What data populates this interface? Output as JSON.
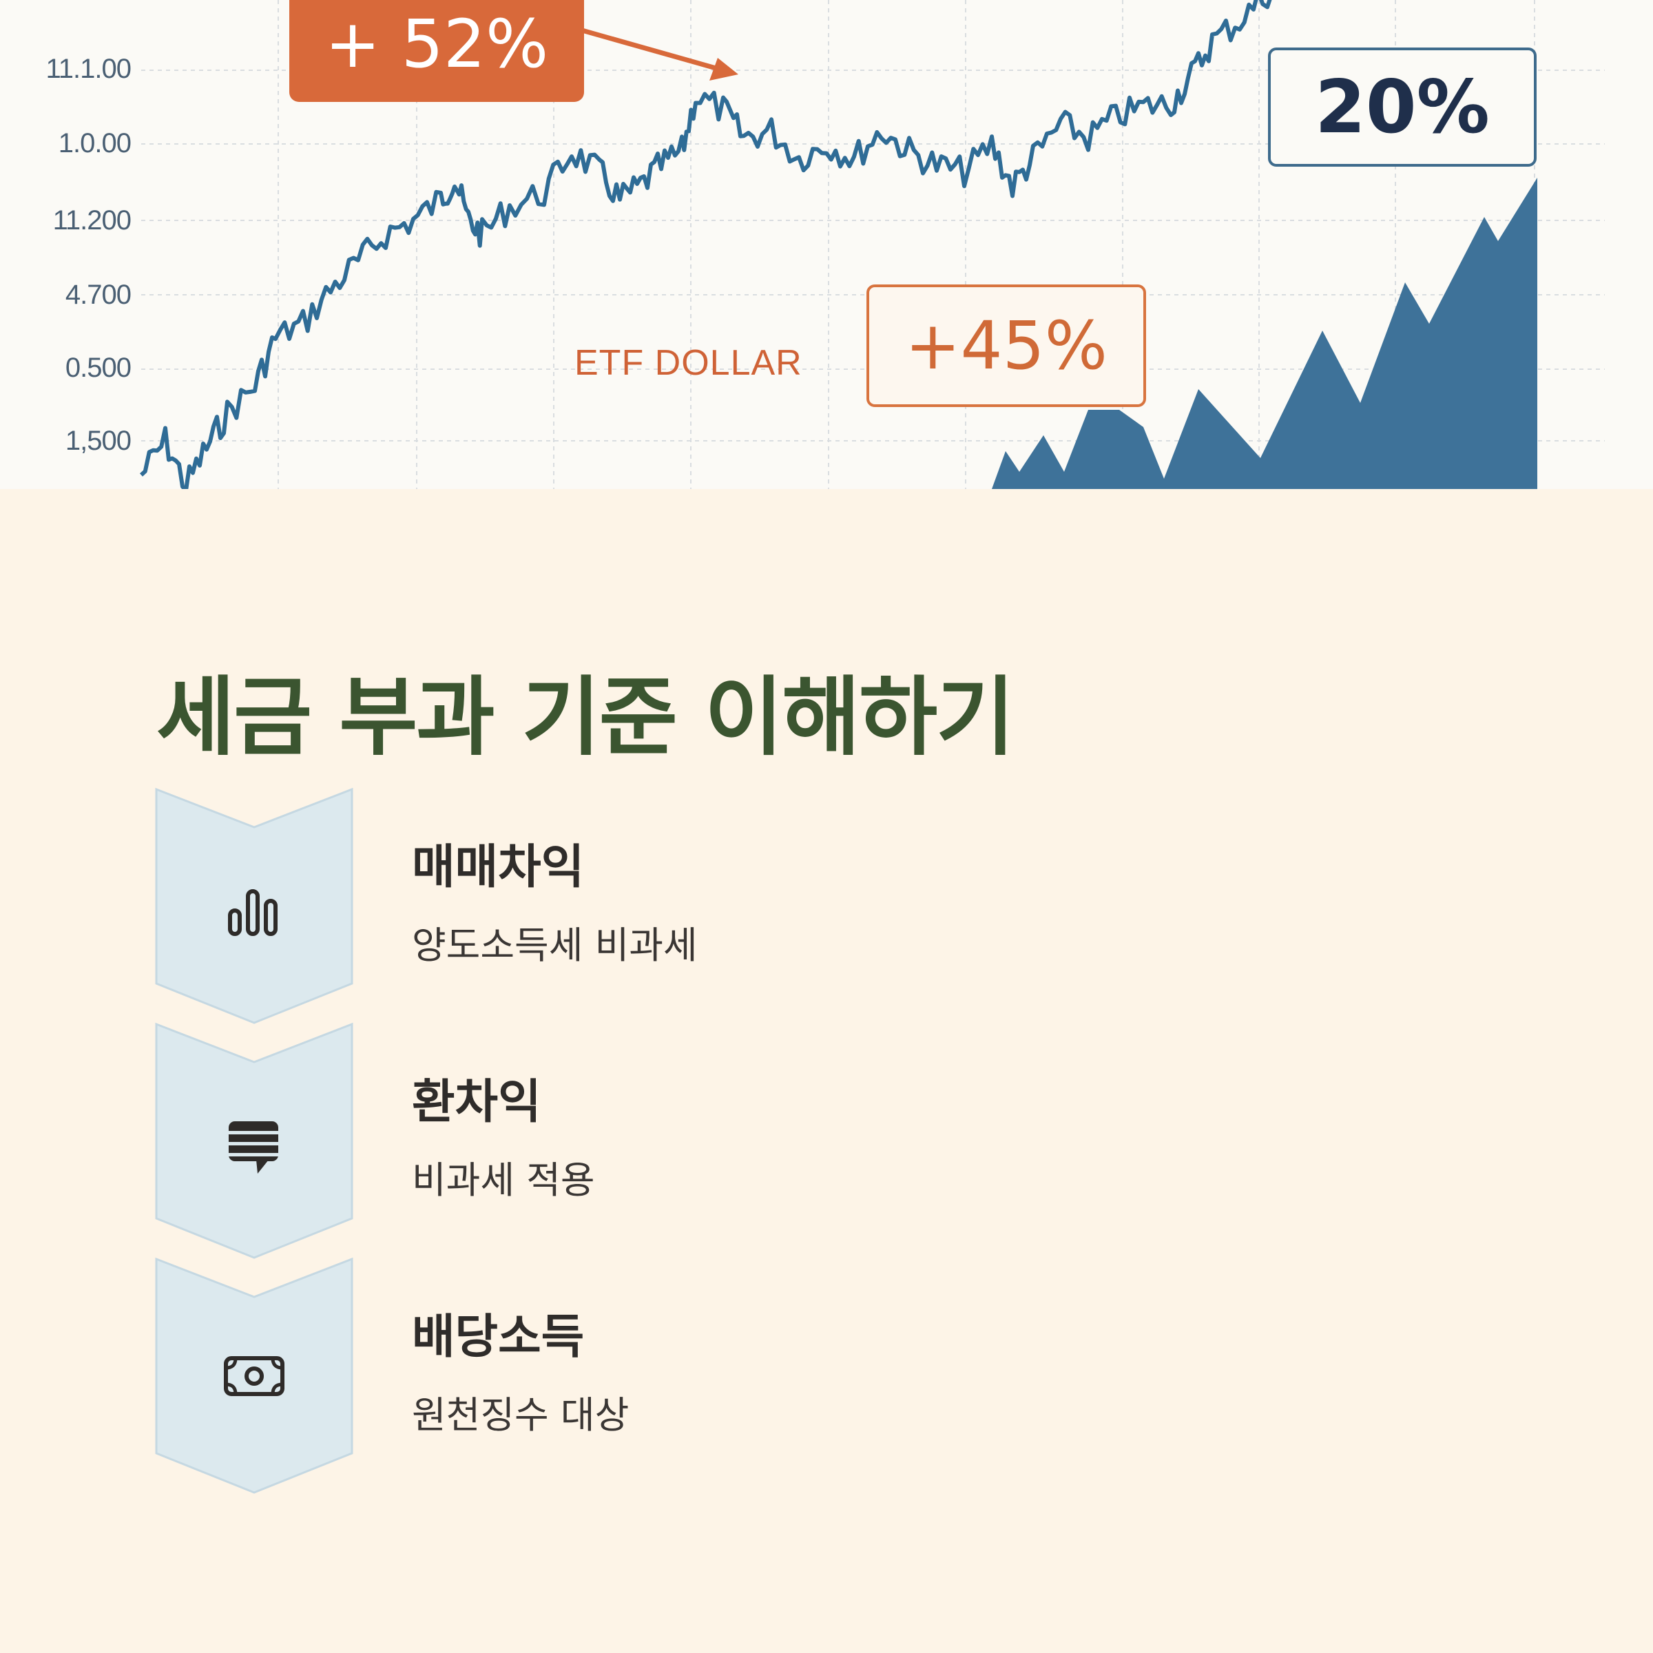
{
  "chart": {
    "y_ticks": [
      "11.1.00",
      "1.0.00",
      "11.200",
      "4.700",
      "0.500",
      "1,500"
    ],
    "badge_main": "+ 52%",
    "badge_secondary": "+45%",
    "badge_rate": "20%",
    "series_label": "ETF DOLLAR",
    "colors": {
      "line": "#2f6c96",
      "area": "#3e7299",
      "accent": "#d8693a",
      "navy": "#1f2f4b"
    }
  },
  "section": {
    "title": "세금 부과 기준 이해하기",
    "items": [
      {
        "icon": "bar-chart-icon",
        "title": "매매차익",
        "desc": "양도소득세 비과세"
      },
      {
        "icon": "message-icon",
        "title": "환차익",
        "desc": "비과세 적용"
      },
      {
        "icon": "cash-icon",
        "title": "배당소득",
        "desc": "원천징수 대상"
      }
    ]
  },
  "colors": {
    "background": "#fdf4e7",
    "title": "#3b5530",
    "chevron": "#dce9ee"
  }
}
